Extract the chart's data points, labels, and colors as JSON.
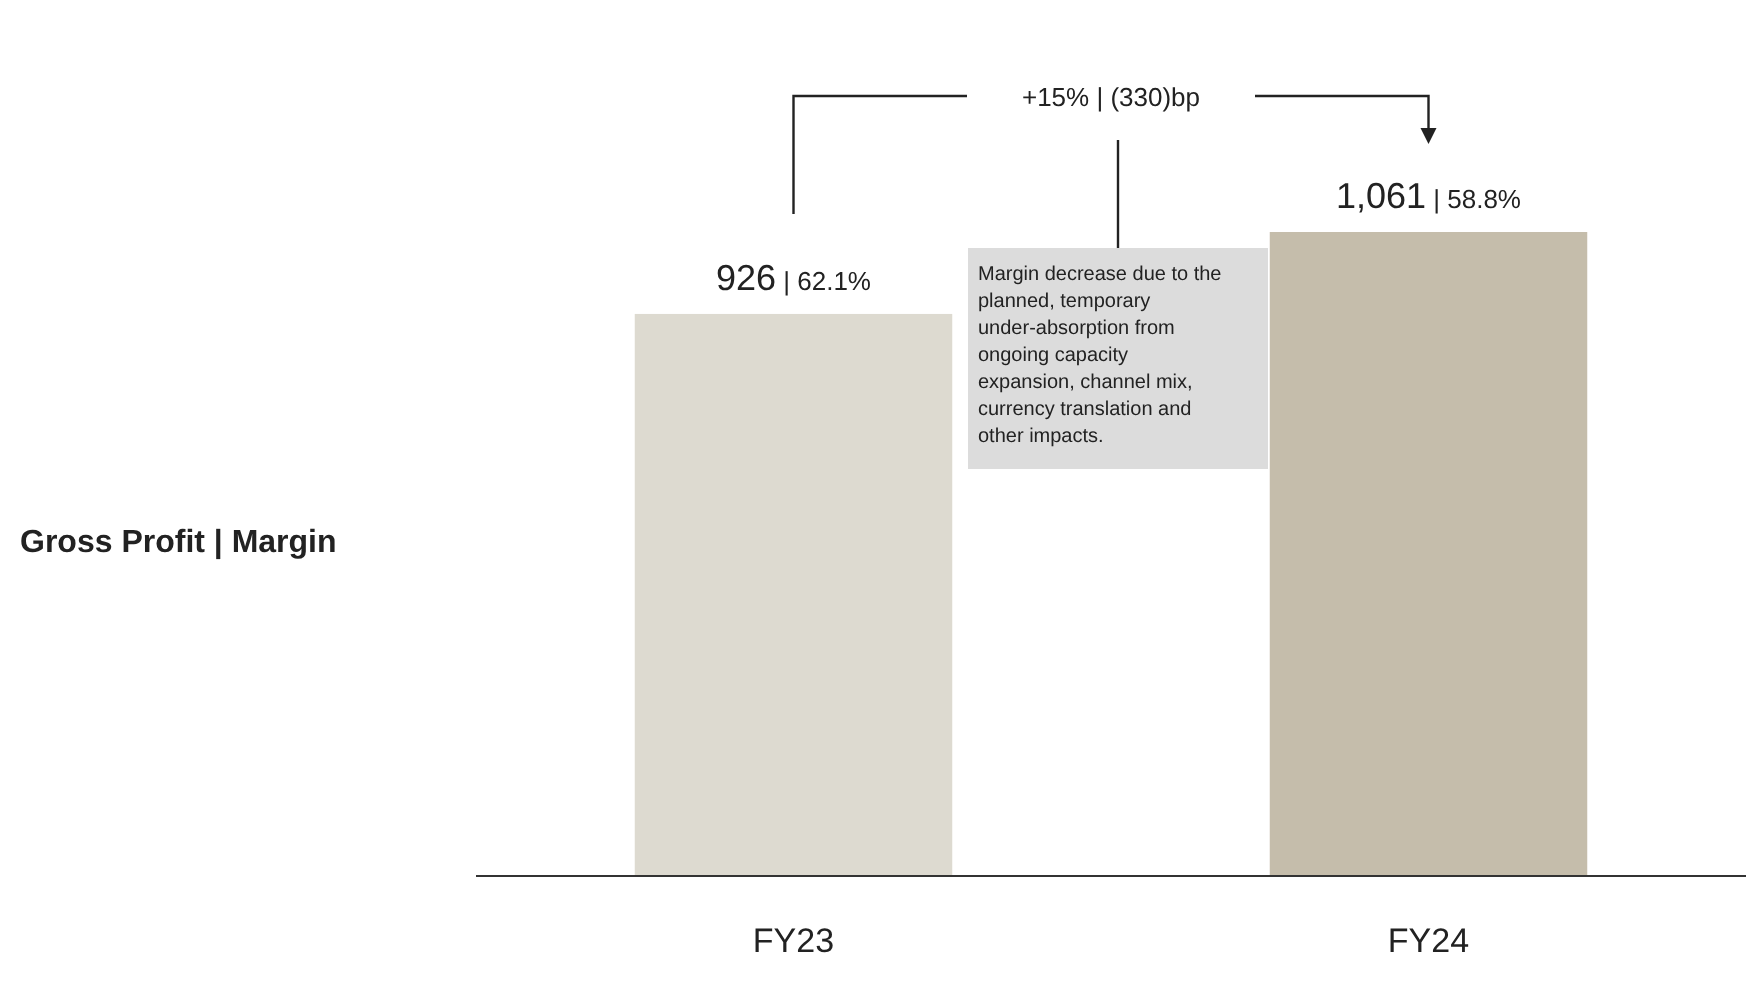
{
  "chart_data": {
    "type": "bar",
    "ylabel": "Gross Profit | Margin",
    "categories": [
      "FY23",
      "FY24"
    ],
    "values": [
      926,
      1061
    ],
    "colors": [
      "#dddad0",
      "#c5bdab"
    ],
    "value_labels": [
      "926 | 62.1%",
      "1,061 | 58.8%"
    ],
    "annotations": [
      "+15% | (330)bp",
      "Margin decrease due to the planned, temporary under-absorption from ongoing capacity expansion, channel mix, currency translation and other impacts."
    ]
  }
}
